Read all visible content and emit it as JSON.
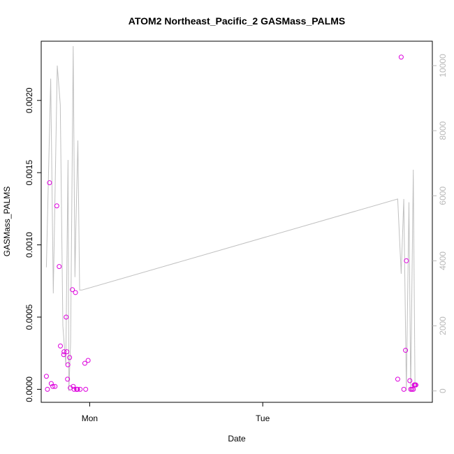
{
  "chart_data": {
    "type": "scatter",
    "title": "ATOM2 Northeast_Pacific_2 GASMass_PALMS",
    "xlabel": "Date",
    "ylabel": "GASMass_PALMS",
    "x_ticks": [
      "Mon",
      "Tue"
    ],
    "x_tick_values": [
      0,
      1
    ],
    "xlim": [
      -0.28,
      1.98
    ],
    "y_ticks": [
      "0.0000",
      "0.0005",
      "0.0010",
      "0.0015",
      "0.0020"
    ],
    "y_tick_values": [
      0,
      0.0005,
      0.001,
      0.0015,
      0.002
    ],
    "ylim": [
      -9e-05,
      0.00241
    ],
    "y2_ticks": [
      "0",
      "2000",
      "4000",
      "6000",
      "8000",
      "10000"
    ],
    "y2_tick_values": [
      0,
      2000,
      4000,
      6000,
      8000,
      10000
    ],
    "y2lim": [
      -350,
      10750
    ],
    "grid": false,
    "colors": {
      "points": "#dd00dd",
      "line": "#c0c0c0",
      "right_axis": "#b8b8b8",
      "axes": "#000000"
    },
    "series": [
      {
        "role": "points",
        "x": [
          -0.25,
          -0.244,
          -0.232,
          -0.222,
          -0.213,
          -0.2,
          -0.19,
          -0.176,
          -0.169,
          -0.15,
          -0.148,
          -0.136,
          -0.132,
          -0.128,
          -0.126,
          -0.116,
          -0.112,
          -0.1,
          -0.095,
          -0.09,
          -0.082,
          -0.075,
          -0.075,
          -0.073,
          -0.07,
          -0.055,
          -0.028,
          -0.023,
          -0.009,
          1.78,
          1.8,
          1.815,
          1.825,
          1.83,
          1.85,
          1.855,
          1.862,
          1.87,
          1.875,
          1.876,
          1.88,
          1.885
        ],
        "y": [
          9e-05,
          0.0,
          0.00143,
          4e-05,
          2e-05,
          2e-05,
          0.00127,
          0.00085,
          0.0003,
          0.00024,
          0.00026,
          0.0005,
          0.00026,
          7e-05,
          0.00017,
          0.00022,
          1e-05,
          0.00069,
          2e-05,
          0.0,
          0.00067,
          0.0,
          0.0,
          0.0,
          0.0,
          0.0,
          0.00018,
          0.0,
          0.0002,
          7e-05,
          0.0023,
          0.0,
          0.00027,
          0.00089,
          6e-05,
          0.0,
          0.0,
          0.0,
          3e-05,
          3e-05,
          3e-05,
          3e-05
        ]
      },
      {
        "role": "line",
        "axis": "right",
        "x": [
          -0.25,
          -0.225,
          -0.21,
          -0.187,
          -0.17,
          -0.155,
          -0.138,
          -0.125,
          -0.12,
          -0.11,
          -0.095,
          -0.085,
          -0.08,
          -0.068,
          -0.058,
          -0.045,
          1.78,
          1.8,
          1.815,
          1.83,
          1.845,
          1.855,
          1.87,
          1.88
        ],
        "y": [
          3800,
          9600,
          3000,
          10000,
          8800,
          2000,
          800,
          7100,
          0,
          1500,
          10600,
          3500,
          5000,
          7700,
          3100,
          3100,
          5900,
          3600,
          5900,
          0,
          5800,
          0,
          6800,
          0
        ]
      }
    ]
  }
}
